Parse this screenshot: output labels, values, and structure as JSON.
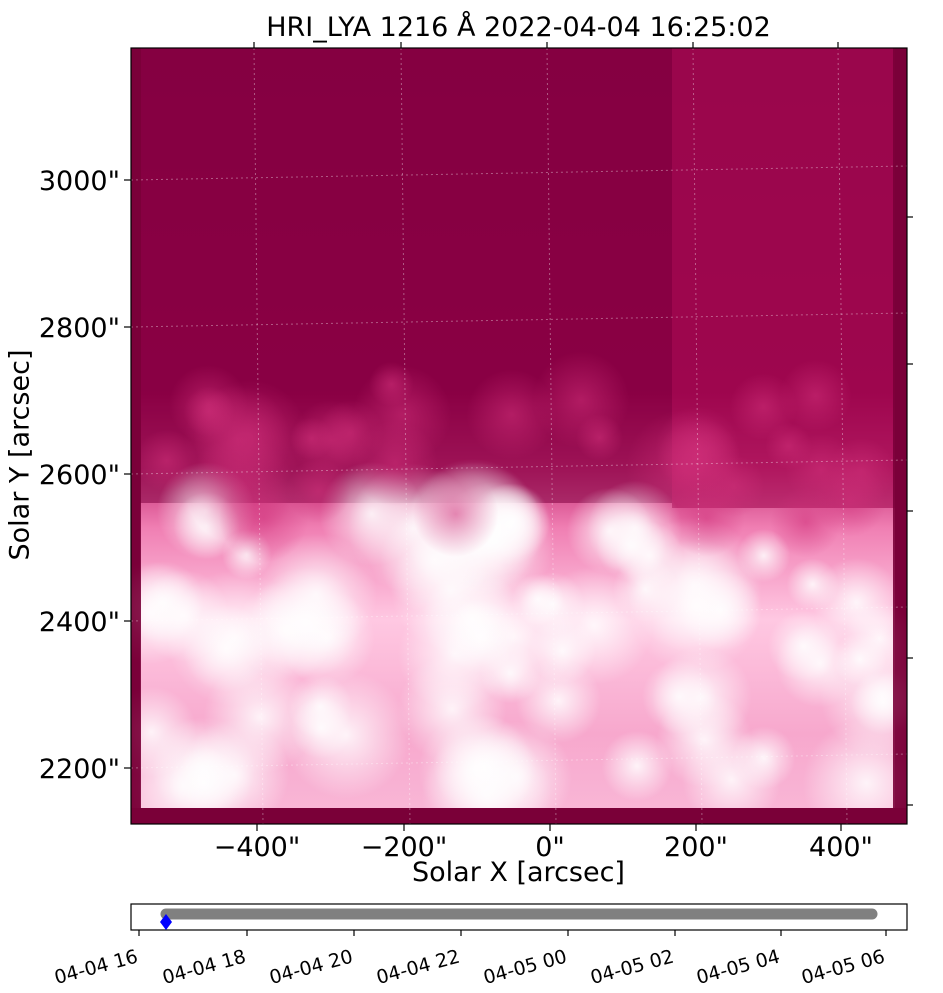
{
  "figure": {
    "title": "HRI_LYA 1216 Å 2022-04-04 16:25:02",
    "xlabel": "Solar X [arcsec]",
    "ylabel": "Solar Y [arcsec]",
    "x_ticks": [
      "−400\"",
      "−200\"",
      "0\"",
      "200\"",
      "400\""
    ],
    "y_ticks": [
      "2200\"",
      "2400\"",
      "2600\"",
      "2800\"",
      "3000\""
    ],
    "colormap": [
      "#7a0038",
      "#a0004f",
      "#d2337e",
      "#f27fb4",
      "#ffd6ea",
      "#ffffff"
    ]
  },
  "chart_data": {
    "type": "scatter",
    "title": "",
    "x": [
      "04-04 16:25:02",
      "04-05 05:30"
    ],
    "series": [
      {
        "values": [
          0,
          0
        ]
      }
    ],
    "current_marker": "04-04 16:25:02",
    "x_tick_labels": [
      "04-04 16",
      "04-04 18",
      "04-04 20",
      "04-04 22",
      "04-05 00",
      "04-05 02",
      "04-05 04",
      "04-05 06"
    ],
    "colors": {
      "track": "#808080",
      "current": "#0000ff"
    }
  }
}
